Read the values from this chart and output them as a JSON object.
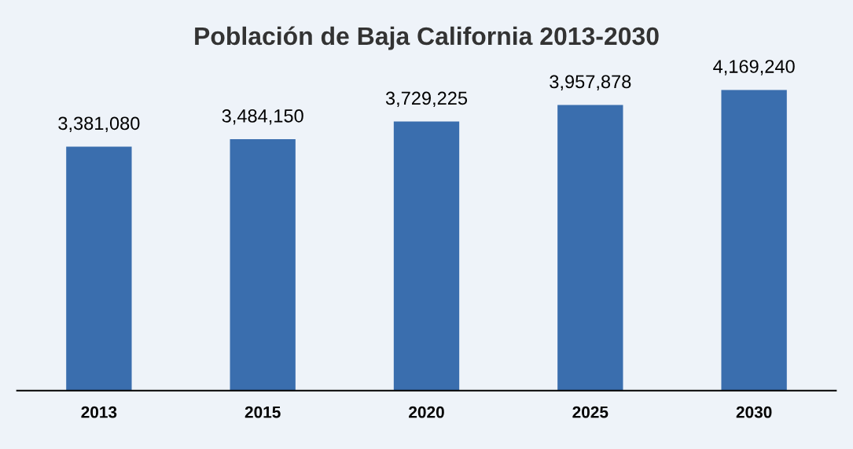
{
  "chart_data": {
    "type": "bar",
    "title": "Población de Baja California 2013-2030",
    "categories": [
      "2013",
      "2015",
      "2020",
      "2025",
      "2030"
    ],
    "values": [
      3381080,
      3484150,
      3729225,
      3957878,
      4169240
    ],
    "color": "#3a6eae",
    "value_labels": [
      "3,381,080",
      "3,484,150",
      "3,729,225",
      "3,957,878",
      "4,169,240"
    ],
    "grid": false,
    "legend": false
  }
}
